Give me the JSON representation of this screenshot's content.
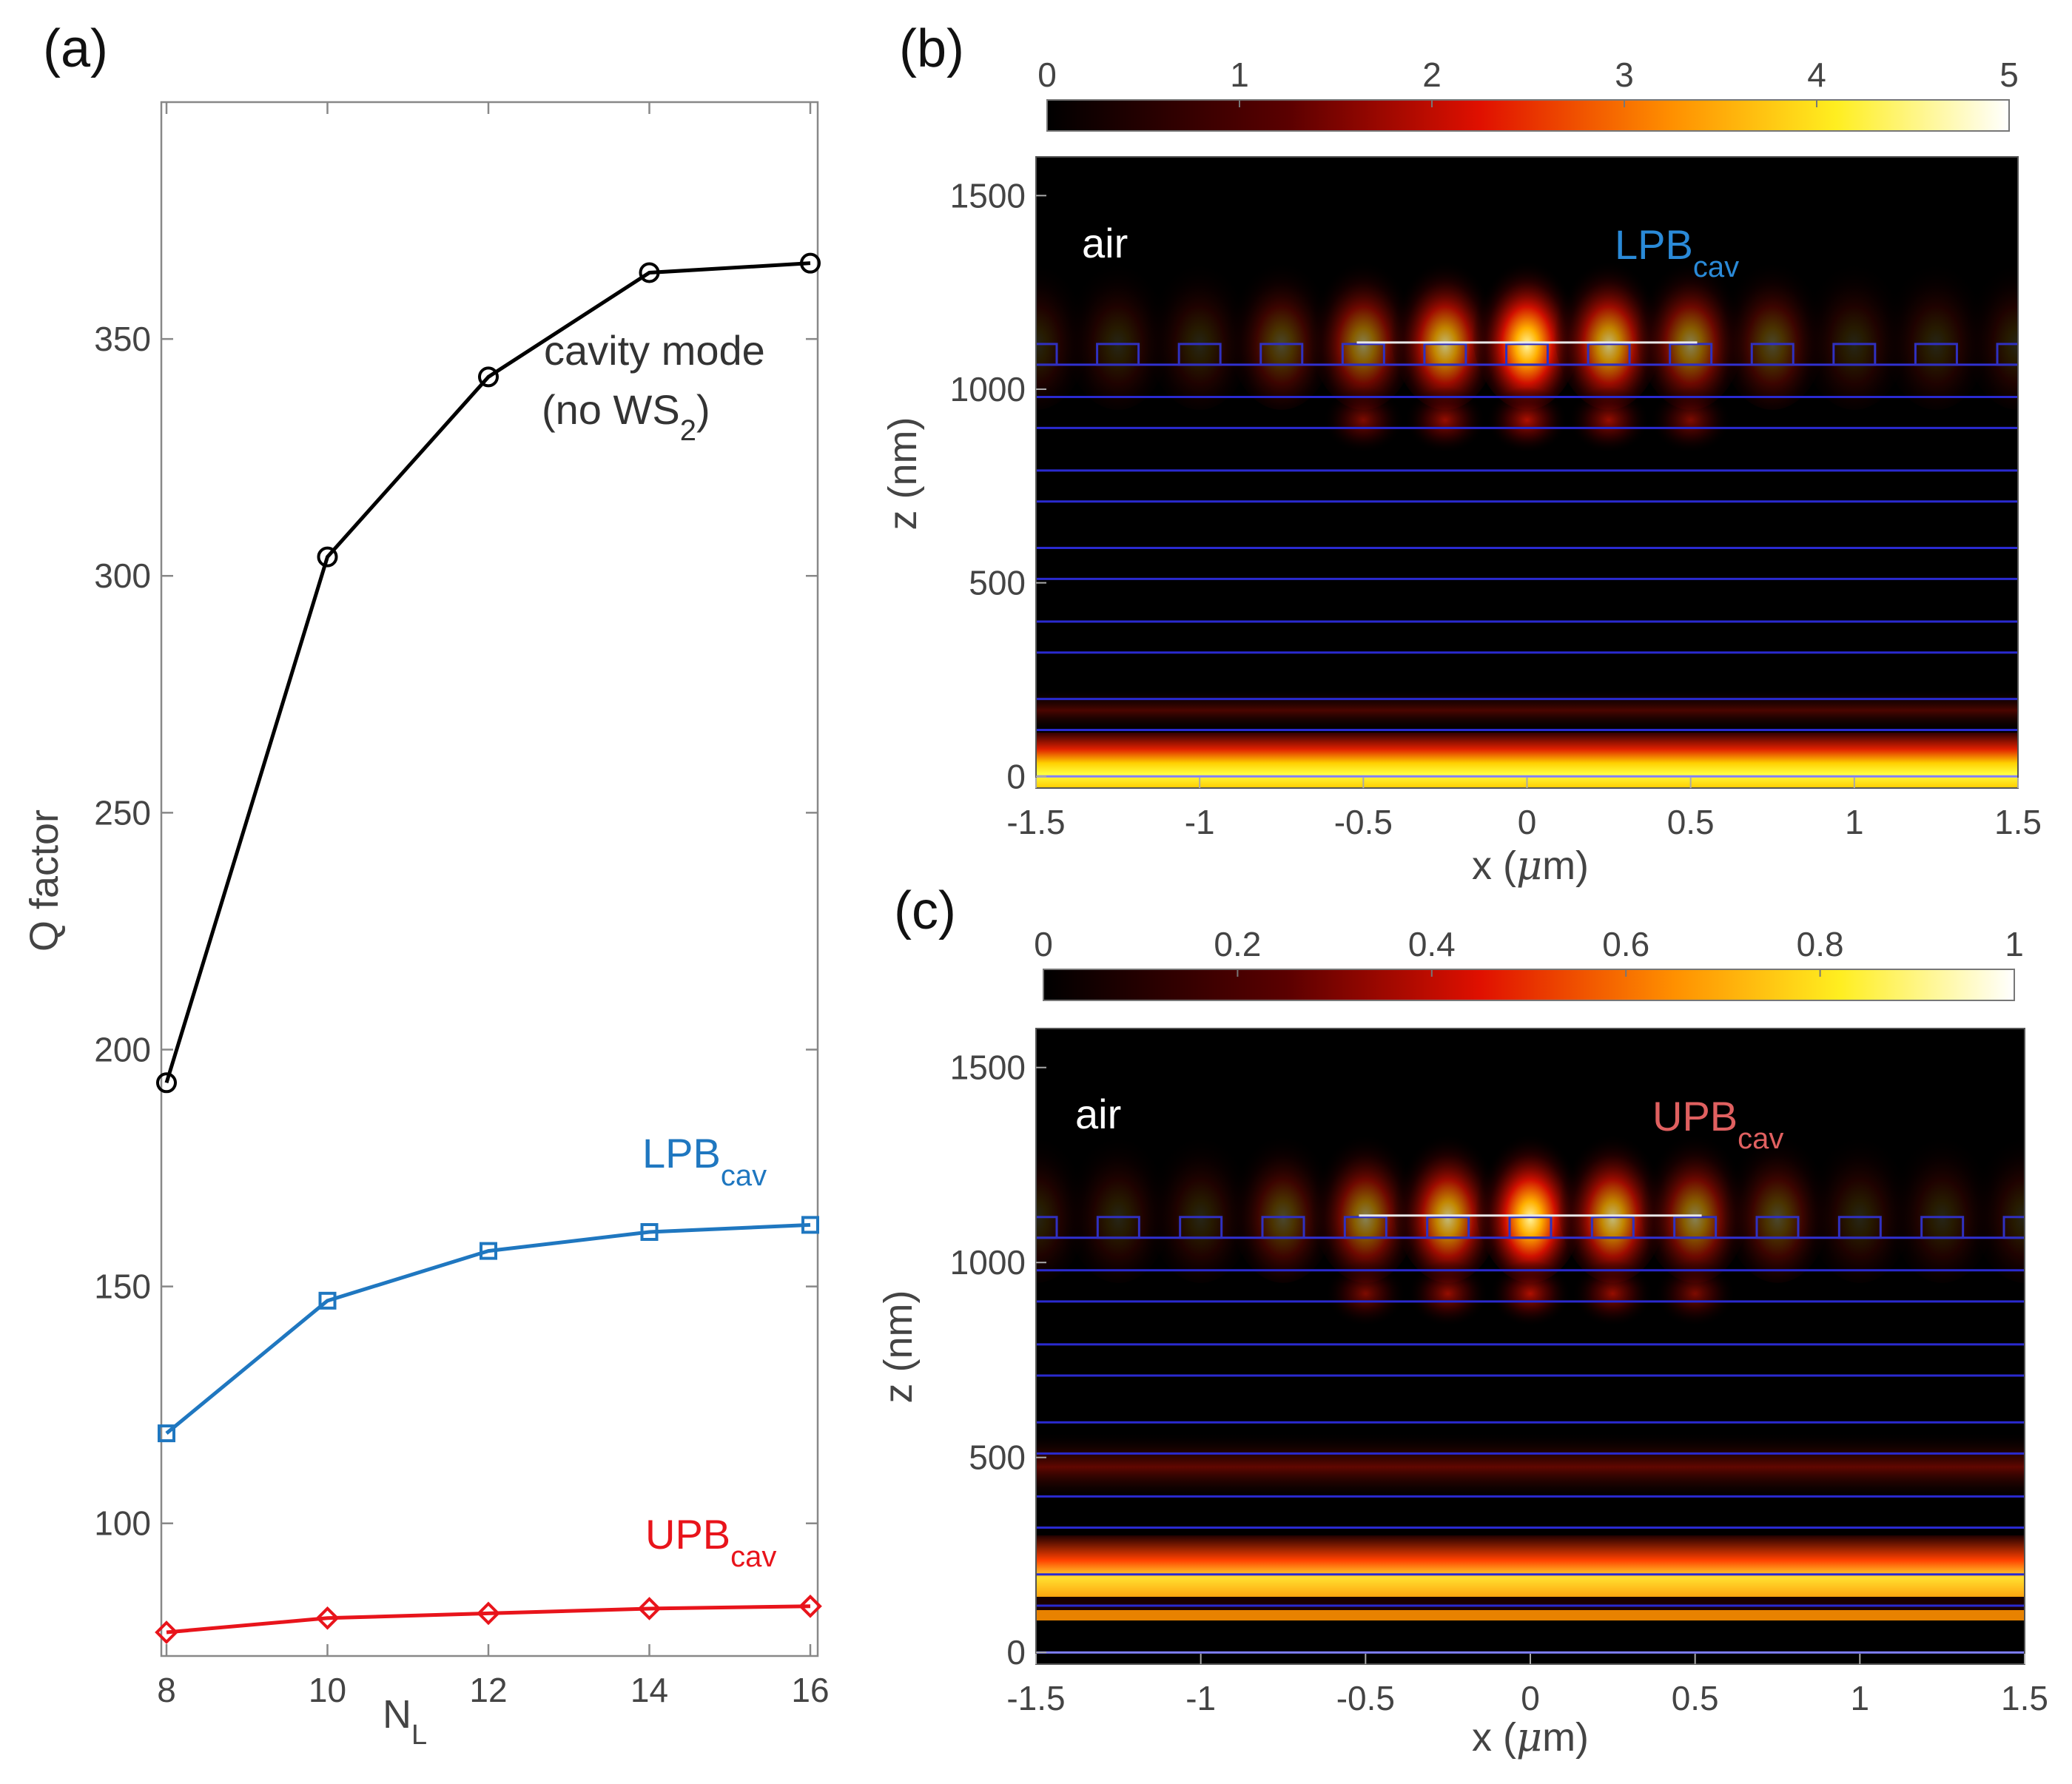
{
  "chart_data": [
    {
      "panel": "(a)",
      "type": "line",
      "x": [
        8,
        10,
        12,
        14,
        16
      ],
      "xlabel": "N",
      "xlabel_sub": "L",
      "ylabel": "Q factor",
      "xlim": [
        8,
        16
      ],
      "ylim": [
        72,
        400
      ],
      "xticks": [
        "8",
        "10",
        "12",
        "14",
        "16"
      ],
      "yticks": [
        100,
        150,
        200,
        250,
        300,
        350
      ],
      "grid": false,
      "series": [
        {
          "key": "cavity",
          "values": [
            193,
            304,
            342,
            364,
            366
          ],
          "color": "#000000",
          "marker": "circle",
          "label_line1": "cavity mode",
          "label_line2_pre": "(no WS",
          "label_line2_sub": "2",
          "label_line2_post": ")"
        },
        {
          "key": "lpb",
          "values": [
            119,
            147,
            157.5,
            161.5,
            163
          ],
          "color": "#1f77c0",
          "marker": "square",
          "label": "LPB",
          "label_sub": "cav"
        },
        {
          "key": "upb",
          "values": [
            77,
            80,
            81,
            82,
            82.5
          ],
          "color": "#e8141b",
          "marker": "diamond",
          "label": "UPB",
          "label_sub": "cav"
        }
      ]
    },
    {
      "panel": "(b)",
      "type": "heatmap",
      "xlabel_pre": "x (",
      "xlabel_mu": "μ",
      "xlabel_post": "m)",
      "ylabel": "z (nm)",
      "xlim": [
        -1.5,
        1.5
      ],
      "ylim": [
        -30,
        1600
      ],
      "xticks": [
        "-1.5",
        "-1",
        "-0.5",
        "0",
        "0.5",
        "1",
        "1.5"
      ],
      "yticks": [
        "0",
        "500",
        "1000",
        "1500"
      ],
      "colorbar_ticks": [
        "0",
        "1",
        "2",
        "3",
        "4",
        "5"
      ],
      "region_label": "air",
      "mode_label": "LPB",
      "mode_label_sub": "cav",
      "mode_label_color": "#2a8ad8"
    },
    {
      "panel": "(c)",
      "type": "heatmap",
      "xlabel_pre": "x (",
      "xlabel_mu": "μ",
      "xlabel_post": "m)",
      "ylabel": "z (nm)",
      "xlim": [
        -1.5,
        1.5
      ],
      "ylim": [
        -30,
        1600
      ],
      "xticks": [
        "-1.5",
        "-1",
        "-0.5",
        "0",
        "0.5",
        "1",
        "1.5"
      ],
      "yticks": [
        "0",
        "500",
        "1000",
        "1500"
      ],
      "colorbar_ticks": [
        "0",
        "0.2",
        "0.4",
        "0.6",
        "0.8",
        "1"
      ],
      "region_label": "air",
      "mode_label": "UPB",
      "mode_label_sub": "cav",
      "mode_label_color": "#e06060"
    }
  ]
}
